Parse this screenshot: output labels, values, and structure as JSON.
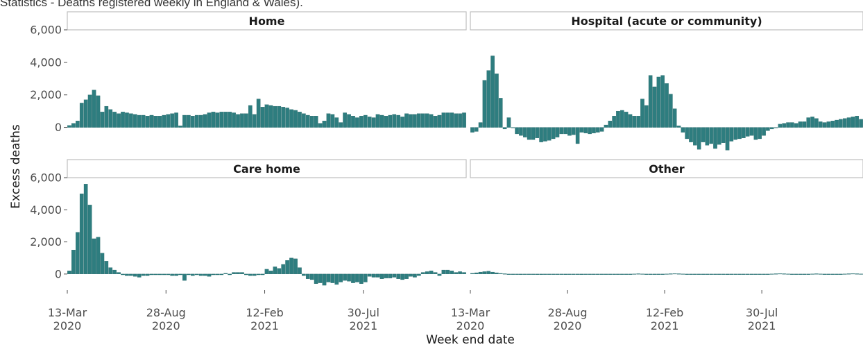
{
  "caption": "Statistics - Deaths registered weekly in England & Wales).",
  "chart_data": {
    "type": "bar",
    "xlabel": "Week end date",
    "ylabel": "Excess deaths",
    "ylim": [
      -1000,
      6000
    ],
    "yticks": [
      0,
      2000,
      4000,
      6000
    ],
    "ytick_labels": [
      "0",
      "2,000",
      "4,000",
      "6,000"
    ],
    "xticks": [
      {
        "week": 0,
        "line1": "13-Mar",
        "line2": "2020"
      },
      {
        "week": 24,
        "line1": "28-Aug",
        "line2": "2020"
      },
      {
        "week": 48,
        "line1": "12-Feb",
        "line2": "2021"
      },
      {
        "week": 72,
        "line1": "30-Jul",
        "line2": "2021"
      }
    ],
    "bar_color": "#2e7d7f",
    "facets": [
      {
        "name": "Home",
        "values": [
          120,
          250,
          400,
          1500,
          1700,
          2000,
          2300,
          1950,
          950,
          1300,
          1100,
          950,
          850,
          950,
          900,
          850,
          800,
          750,
          750,
          700,
          750,
          700,
          700,
          750,
          800,
          850,
          900,
          100,
          750,
          750,
          700,
          750,
          750,
          800,
          900,
          950,
          900,
          950,
          950,
          950,
          900,
          800,
          850,
          850,
          1350,
          800,
          1750,
          1250,
          1400,
          1350,
          1300,
          1300,
          1250,
          1200,
          1100,
          1050,
          950,
          850,
          750,
          700,
          700,
          250,
          400,
          850,
          800,
          600,
          300,
          900,
          800,
          700,
          600,
          700,
          750,
          650,
          600,
          800,
          750,
          700,
          750,
          800,
          750,
          650,
          850,
          800,
          800,
          850,
          850,
          850,
          800,
          700,
          750,
          900,
          900,
          900,
          850,
          850,
          900
        ]
      },
      {
        "name": "Hospital (acute or community)",
        "values": [
          -300,
          -250,
          300,
          2900,
          3500,
          4400,
          3300,
          1800,
          -100,
          600,
          0,
          -400,
          -500,
          -600,
          -750,
          -750,
          -650,
          -900,
          -850,
          -800,
          -700,
          -600,
          -400,
          -400,
          -500,
          -450,
          -1000,
          -300,
          -350,
          -400,
          -350,
          -300,
          -250,
          150,
          400,
          700,
          1000,
          1050,
          950,
          800,
          700,
          700,
          1750,
          1350,
          3200,
          2500,
          3100,
          3200,
          2700,
          2050,
          1150,
          100,
          -300,
          -700,
          -900,
          -1100,
          -1350,
          -900,
          -1100,
          -1000,
          -1300,
          -1050,
          -950,
          -1400,
          -850,
          -750,
          -700,
          -650,
          -550,
          -500,
          -750,
          -700,
          -500,
          -200,
          -100,
          0,
          200,
          250,
          300,
          300,
          250,
          350,
          350,
          600,
          650,
          550,
          350,
          300,
          350,
          400,
          450,
          500,
          550,
          600,
          650,
          700,
          500
        ]
      },
      {
        "name": "Care home",
        "values": [
          200,
          1500,
          2600,
          5000,
          5600,
          4300,
          2200,
          2300,
          1300,
          800,
          400,
          250,
          100,
          -50,
          -100,
          -100,
          -150,
          -200,
          -100,
          -100,
          -50,
          -50,
          -50,
          -50,
          -50,
          -100,
          -100,
          -50,
          -400,
          -50,
          -100,
          -50,
          -100,
          -100,
          -150,
          -50,
          -50,
          -50,
          50,
          -50,
          100,
          100,
          100,
          -50,
          -100,
          -100,
          -50,
          -50,
          300,
          200,
          450,
          350,
          600,
          850,
          1000,
          950,
          400,
          -100,
          -300,
          -350,
          -600,
          -550,
          -700,
          -500,
          -550,
          -650,
          -500,
          -400,
          -450,
          -550,
          -500,
          -600,
          -500,
          -150,
          -200,
          -200,
          -300,
          -250,
          -250,
          -200,
          -300,
          -350,
          -300,
          -150,
          -200,
          -100,
          100,
          150,
          200,
          100,
          -100,
          250,
          250,
          200,
          100,
          150,
          100
        ]
      },
      {
        "name": "Other",
        "values": [
          50,
          80,
          120,
          150,
          180,
          120,
          80,
          40,
          20,
          0,
          -20,
          -30,
          -40,
          -30,
          -20,
          -30,
          -40,
          -40,
          -30,
          -20,
          -10,
          -20,
          -30,
          -40,
          -30,
          -20,
          -30,
          -40,
          -30,
          -20,
          -10,
          -20,
          -30,
          -20,
          -10,
          0,
          -10,
          -20,
          -10,
          0,
          10,
          20,
          10,
          0,
          -10,
          -20,
          -10,
          0,
          10,
          20,
          30,
          20,
          10,
          0,
          -10,
          -20,
          -30,
          -20,
          -10,
          0,
          -10,
          -20,
          -30,
          -40,
          -30,
          -20,
          -10,
          0,
          -10,
          -20,
          -30,
          -20,
          -10,
          0,
          10,
          20,
          30,
          20,
          10,
          0,
          -10,
          -20,
          -10,
          0,
          10,
          20,
          10,
          0,
          -10,
          -20,
          -10,
          0,
          10,
          20,
          30,
          20,
          10
        ]
      }
    ]
  }
}
